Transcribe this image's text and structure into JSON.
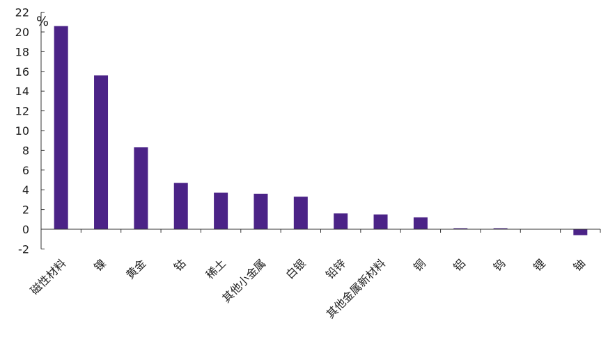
{
  "chart_data": {
    "type": "bar",
    "title": "",
    "xlabel": "",
    "ylabel": "%",
    "ylim": [
      -2,
      22
    ],
    "yticks": [
      22,
      20,
      18,
      16,
      14,
      12,
      10,
      8,
      6,
      4,
      2,
      0,
      -2
    ],
    "grid": false,
    "legend": "none",
    "bar_color": "#4b2387",
    "categories": [
      "磁性材料",
      "镍",
      "黄金",
      "钴",
      "稀土",
      "其他小金属",
      "白银",
      "铅锌",
      "其他金属新材料",
      "铜",
      "铝",
      "钨",
      "锂",
      "铀"
    ],
    "values": [
      20.6,
      15.6,
      8.3,
      4.7,
      3.7,
      3.6,
      3.3,
      1.6,
      1.5,
      1.2,
      0.1,
      0.1,
      0.0,
      -0.6
    ]
  }
}
